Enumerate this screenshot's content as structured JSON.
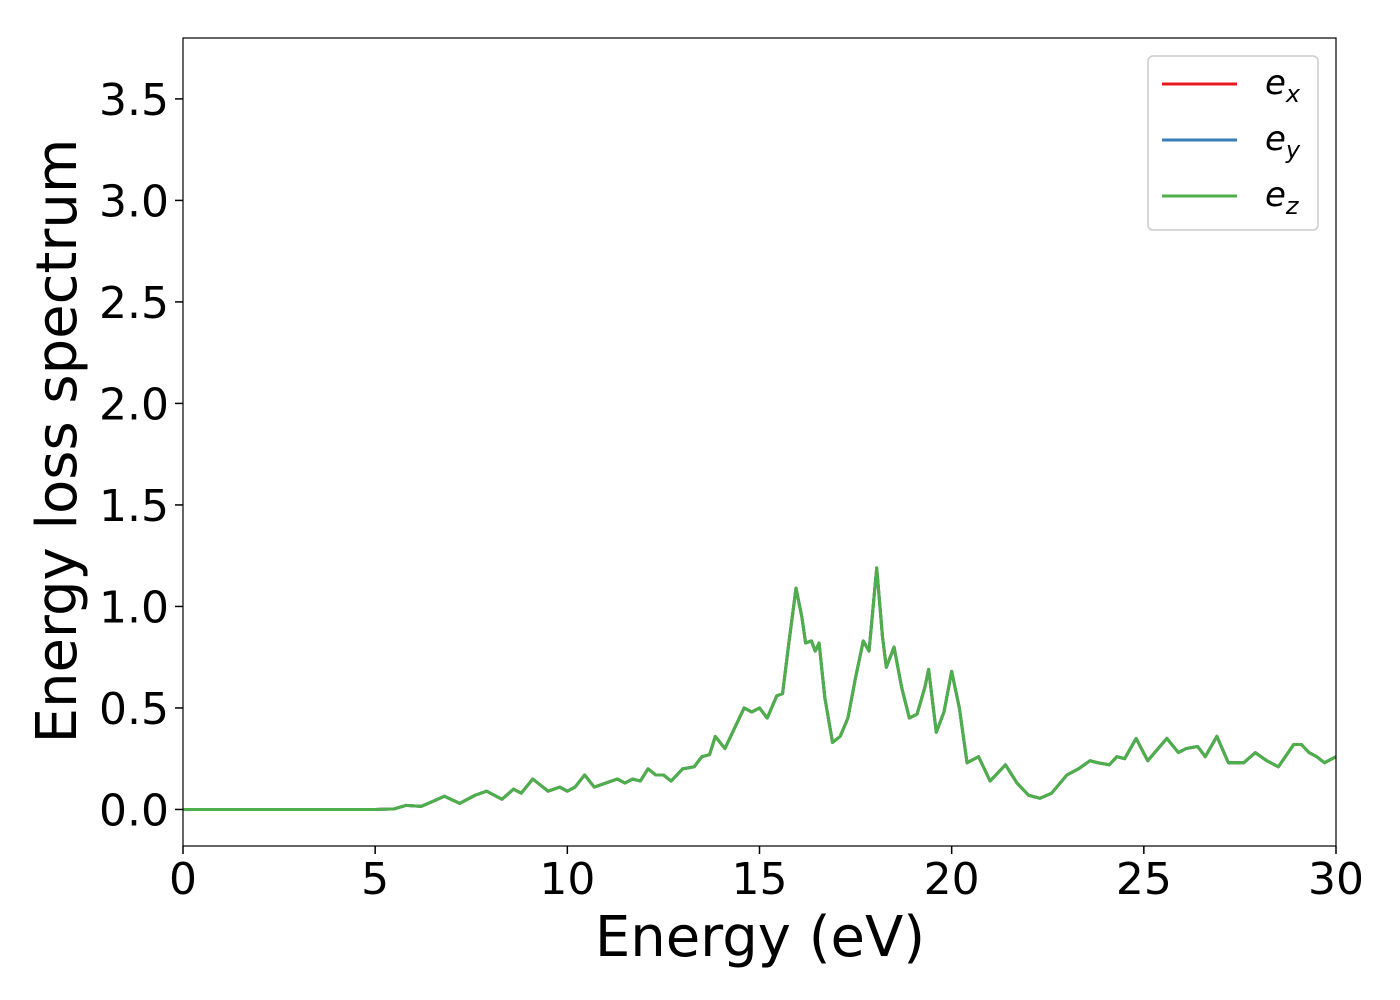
{
  "chart_data": {
    "type": "line",
    "xlabel": "Energy (eV)",
    "ylabel": "Energy loss spectrum",
    "xlim": [
      0,
      30
    ],
    "ylim": [
      -0.18,
      3.8
    ],
    "xticks": [
      0,
      5,
      10,
      15,
      20,
      25,
      30
    ],
    "yticks": [
      {
        "value": 0,
        "label": "0.0"
      },
      0.5,
      {
        "value": 1,
        "label": "1.0"
      },
      1.5,
      {
        "value": 2,
        "label": "2.0"
      },
      2.5,
      {
        "value": 3,
        "label": "3.0"
      },
      3.5
    ],
    "grid": false,
    "legend": "upper right",
    "x": [
      0,
      1,
      2,
      3,
      4,
      5,
      5.5,
      5.8,
      6.2,
      6.5,
      6.8,
      7.2,
      7.6,
      7.9,
      8.3,
      8.6,
      8.8,
      9.1,
      9.5,
      9.8,
      10,
      10.2,
      10.45,
      10.7,
      11,
      11.3,
      11.5,
      11.7,
      11.9,
      12.1,
      12.3,
      12.5,
      12.7,
      13,
      13.3,
      13.5,
      13.7,
      13.85,
      14.1,
      14.35,
      14.6,
      14.8,
      15,
      15.2,
      15.45,
      15.6,
      15.75,
      15.95,
      16.1,
      16.2,
      16.35,
      16.45,
      16.55,
      16.7,
      16.9,
      17.1,
      17.3,
      17.5,
      17.7,
      17.85,
      18.05,
      18.2,
      18.3,
      18.5,
      18.7,
      18.9,
      19.1,
      19.3,
      19.4,
      19.6,
      19.8,
      20,
      20.2,
      20.4,
      20.7,
      21,
      21.4,
      21.7,
      22,
      22.3,
      22.6,
      23,
      23.3,
      23.6,
      23.8,
      24.1,
      24.3,
      24.5,
      24.8,
      25.1,
      25.6,
      25.9,
      26.1,
      26.4,
      26.6,
      26.9,
      27.2,
      27.6,
      27.9,
      28.2,
      28.5,
      28.9,
      29.1,
      29.3,
      29.5,
      29.7,
      30
    ],
    "series": [
      {
        "name": "ex",
        "color": "#e41a1c",
        "values": [
          0,
          0,
          0,
          0,
          0,
          0,
          0.003,
          0.02,
          0.015,
          0.04,
          0.065,
          0.03,
          0.07,
          0.09,
          0.05,
          0.1,
          0.08,
          0.15,
          0.09,
          0.11,
          0.09,
          0.11,
          0.17,
          0.11,
          0.13,
          0.15,
          0.13,
          0.15,
          0.14,
          0.2,
          0.17,
          0.17,
          0.14,
          0.2,
          0.21,
          0.26,
          0.27,
          0.36,
          0.3,
          0.4,
          0.5,
          0.48,
          0.5,
          0.45,
          0.56,
          0.57,
          0.8,
          1.09,
          0.95,
          0.82,
          0.83,
          0.78,
          0.82,
          0.55,
          0.33,
          0.36,
          0.45,
          0.65,
          0.83,
          0.78,
          1.19,
          0.85,
          0.7,
          0.8,
          0.6,
          0.45,
          0.47,
          0.6,
          0.69,
          0.38,
          0.48,
          0.68,
          0.5,
          0.23,
          0.26,
          0.14,
          0.22,
          0.13,
          0.07,
          0.055,
          0.08,
          0.17,
          0.2,
          0.24,
          0.23,
          0.22,
          0.26,
          0.25,
          0.35,
          0.24,
          0.35,
          0.28,
          0.3,
          0.31,
          0.26,
          0.36,
          0.23,
          0.23,
          0.28,
          0.24,
          0.21,
          0.32,
          0.32,
          0.28,
          0.26,
          0.23,
          0.26
        ]
      },
      {
        "name": "ey",
        "color": "#377eb8",
        "values": [
          0,
          0,
          0,
          0,
          0,
          0,
          0.003,
          0.02,
          0.015,
          0.04,
          0.065,
          0.03,
          0.07,
          0.09,
          0.05,
          0.1,
          0.08,
          0.15,
          0.09,
          0.11,
          0.09,
          0.11,
          0.17,
          0.11,
          0.13,
          0.15,
          0.13,
          0.15,
          0.14,
          0.2,
          0.17,
          0.17,
          0.14,
          0.2,
          0.21,
          0.26,
          0.27,
          0.36,
          0.3,
          0.4,
          0.5,
          0.48,
          0.5,
          0.45,
          0.56,
          0.57,
          0.8,
          1.09,
          0.95,
          0.82,
          0.83,
          0.78,
          0.82,
          0.55,
          0.33,
          0.36,
          0.45,
          0.65,
          0.83,
          0.78,
          1.19,
          0.85,
          0.7,
          0.8,
          0.6,
          0.45,
          0.47,
          0.6,
          0.69,
          0.38,
          0.48,
          0.68,
          0.5,
          0.23,
          0.26,
          0.14,
          0.22,
          0.13,
          0.07,
          0.055,
          0.08,
          0.17,
          0.2,
          0.24,
          0.23,
          0.22,
          0.26,
          0.25,
          0.35,
          0.24,
          0.35,
          0.28,
          0.3,
          0.31,
          0.26,
          0.36,
          0.23,
          0.23,
          0.28,
          0.24,
          0.21,
          0.32,
          0.32,
          0.28,
          0.26,
          0.23,
          0.26
        ]
      },
      {
        "name": "ez",
        "color": "#4daf4a",
        "values": [
          0,
          0,
          0,
          0,
          0,
          0,
          0.003,
          0.02,
          0.015,
          0.04,
          0.065,
          0.03,
          0.07,
          0.09,
          0.05,
          0.1,
          0.08,
          0.15,
          0.09,
          0.11,
          0.09,
          0.11,
          0.17,
          0.11,
          0.13,
          0.15,
          0.13,
          0.15,
          0.14,
          0.2,
          0.17,
          0.17,
          0.14,
          0.2,
          0.21,
          0.26,
          0.27,
          0.36,
          0.3,
          0.4,
          0.5,
          0.48,
          0.5,
          0.45,
          0.56,
          0.57,
          0.8,
          1.09,
          0.95,
          0.82,
          0.83,
          0.78,
          0.82,
          0.55,
          0.33,
          0.36,
          0.45,
          0.65,
          0.83,
          0.78,
          1.19,
          0.85,
          0.7,
          0.8,
          0.6,
          0.45,
          0.47,
          0.6,
          0.69,
          0.38,
          0.48,
          0.68,
          0.5,
          0.23,
          0.26,
          0.14,
          0.22,
          0.13,
          0.07,
          0.055,
          0.08,
          0.17,
          0.2,
          0.24,
          0.23,
          0.22,
          0.26,
          0.25,
          0.35,
          0.24,
          0.35,
          0.28,
          0.3,
          0.31,
          0.26,
          0.36,
          0.23,
          0.23,
          0.28,
          0.24,
          0.21,
          0.32,
          0.32,
          0.28,
          0.26,
          0.23,
          0.26
        ]
      }
    ]
  }
}
